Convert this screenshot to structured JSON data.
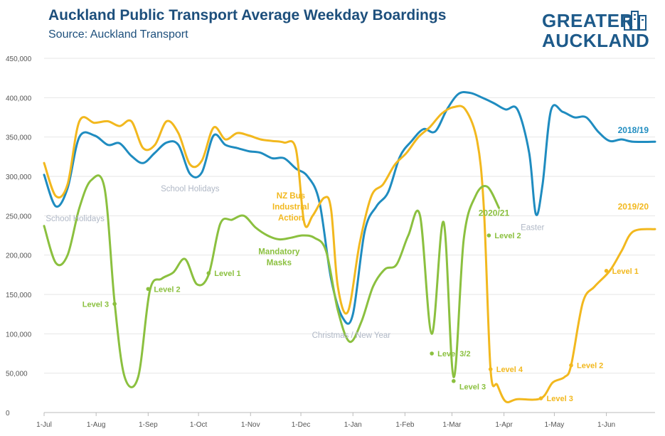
{
  "header": {
    "title": "Auckland Public Transport Average Weekday Boardings",
    "subtitle": "Source: Auckland Transport"
  },
  "logo": {
    "line1": "GREATER",
    "line2": "AUCKLAND",
    "icon": "city-buildings-icon",
    "color": "#1d5a8a"
  },
  "chart_data": {
    "type": "line",
    "title": "Auckland Public Transport Average Weekday Boardings",
    "subtitle": "Source: Auckland Transport",
    "xlabel": "",
    "ylabel": "",
    "x_range": [
      "2000-07-01",
      "2001-06-30"
    ],
    "x_ticks": [
      "1-Jul",
      "1-Aug",
      "1-Sep",
      "1-Oct",
      "1-Nov",
      "1-Dec",
      "1-Jan",
      "1-Feb",
      "1-Mar",
      "1-Apr",
      "1-May",
      "1-Jun"
    ],
    "ylim": [
      0,
      450000
    ],
    "y_ticks": [
      0,
      50000,
      100000,
      150000,
      200000,
      250000,
      300000,
      350000,
      400000,
      450000
    ],
    "y_tick_labels": [
      "0",
      "50,000",
      "100,000",
      "150,000",
      "200,000",
      "250,000",
      "300,000",
      "350,000",
      "400,000",
      "450,000"
    ],
    "grid": "horizontal",
    "series": [
      {
        "name": "2018/19",
        "color": "#1f8cc0",
        "points": [
          [
            "2000-07-01",
            302000
          ],
          [
            "2000-07-08",
            262000
          ],
          [
            "2000-07-15",
            285000
          ],
          [
            "2000-07-22",
            350000
          ],
          [
            "2000-07-31",
            352000
          ],
          [
            "2000-08-08",
            340000
          ],
          [
            "2000-08-15",
            342000
          ],
          [
            "2000-08-22",
            326000
          ],
          [
            "2000-08-29",
            317000
          ],
          [
            "2000-09-05",
            330000
          ],
          [
            "2000-09-12",
            343000
          ],
          [
            "2000-09-19",
            340000
          ],
          [
            "2000-09-26",
            303000
          ],
          [
            "2000-10-03",
            305000
          ],
          [
            "2000-10-10",
            352000
          ],
          [
            "2000-10-17",
            340000
          ],
          [
            "2000-10-24",
            336000
          ],
          [
            "2000-10-31",
            332000
          ],
          [
            "2000-11-07",
            330000
          ],
          [
            "2000-11-14",
            323000
          ],
          [
            "2000-11-21",
            323000
          ],
          [
            "2000-11-28",
            310000
          ],
          [
            "2000-12-05",
            300000
          ],
          [
            "2000-12-12",
            268000
          ],
          [
            "2000-12-19",
            170000
          ],
          [
            "2000-12-26",
            120000
          ],
          [
            "2001-01-01",
            125000
          ],
          [
            "2001-01-08",
            230000
          ],
          [
            "2001-01-15",
            262000
          ],
          [
            "2001-01-22",
            280000
          ],
          [
            "2001-01-29",
            325000
          ],
          [
            "2001-02-05",
            345000
          ],
          [
            "2001-02-12",
            360000
          ],
          [
            "2001-02-19",
            357000
          ],
          [
            "2001-02-26",
            385000
          ],
          [
            "2001-03-05",
            405000
          ],
          [
            "2001-03-12",
            406000
          ],
          [
            "2001-03-19",
            400000
          ],
          [
            "2001-03-26",
            393000
          ],
          [
            "2001-04-02",
            385000
          ],
          [
            "2001-04-09",
            385000
          ],
          [
            "2001-04-16",
            330000
          ],
          [
            "2001-04-20",
            252000
          ],
          [
            "2001-04-24",
            290000
          ],
          [
            "2001-04-29",
            384000
          ],
          [
            "2001-05-06",
            382000
          ],
          [
            "2001-05-13",
            375000
          ],
          [
            "2001-05-20",
            375000
          ],
          [
            "2001-05-27",
            357000
          ],
          [
            "2001-06-03",
            345000
          ],
          [
            "2001-06-10",
            347000
          ],
          [
            "2001-06-17",
            344000
          ],
          [
            "2001-06-30",
            344000
          ]
        ]
      },
      {
        "name": "2019/20",
        "color": "#f2b81e",
        "points": [
          [
            "2000-07-01",
            317000
          ],
          [
            "2000-07-08",
            275000
          ],
          [
            "2000-07-15",
            290000
          ],
          [
            "2000-07-22",
            370000
          ],
          [
            "2000-07-31",
            368000
          ],
          [
            "2000-08-08",
            370000
          ],
          [
            "2000-08-15",
            364000
          ],
          [
            "2000-08-22",
            370000
          ],
          [
            "2000-08-29",
            336000
          ],
          [
            "2000-09-05",
            340000
          ],
          [
            "2000-09-12",
            370000
          ],
          [
            "2000-09-19",
            355000
          ],
          [
            "2000-09-26",
            315000
          ],
          [
            "2000-10-03",
            320000
          ],
          [
            "2000-10-10",
            362000
          ],
          [
            "2000-10-17",
            347000
          ],
          [
            "2000-10-24",
            355000
          ],
          [
            "2000-10-31",
            352000
          ],
          [
            "2000-11-07",
            347000
          ],
          [
            "2000-11-14",
            345000
          ],
          [
            "2000-11-21",
            343000
          ],
          [
            "2000-11-28",
            335000
          ],
          [
            "2000-12-03",
            241000
          ],
          [
            "2000-12-08",
            250000
          ],
          [
            "2000-12-15",
            273000
          ],
          [
            "2000-12-19",
            258000
          ],
          [
            "2000-12-23",
            160000
          ],
          [
            "2000-12-29",
            128000
          ],
          [
            "2001-01-05",
            215000
          ],
          [
            "2001-01-12",
            275000
          ],
          [
            "2001-01-19",
            290000
          ],
          [
            "2001-01-26",
            315000
          ],
          [
            "2001-02-02",
            330000
          ],
          [
            "2001-02-09",
            350000
          ],
          [
            "2001-02-16",
            363000
          ],
          [
            "2001-02-23",
            380000
          ],
          [
            "2001-03-02",
            388000
          ],
          [
            "2001-03-09",
            385000
          ],
          [
            "2001-03-16",
            345000
          ],
          [
            "2001-03-20",
            260000
          ],
          [
            "2001-03-24",
            55000
          ],
          [
            "2001-03-28",
            35000
          ],
          [
            "2001-04-02",
            14000
          ],
          [
            "2001-04-09",
            17000
          ],
          [
            "2001-04-23",
            18000
          ],
          [
            "2001-04-30",
            38000
          ],
          [
            "2001-05-07",
            45000
          ],
          [
            "2001-05-11",
            60000
          ],
          [
            "2001-05-18",
            140000
          ],
          [
            "2001-05-25",
            160000
          ],
          [
            "2001-06-03",
            180000
          ],
          [
            "2001-06-10",
            205000
          ],
          [
            "2001-06-17",
            230000
          ],
          [
            "2001-06-30",
            233000
          ]
        ]
      },
      {
        "name": "2020/21",
        "color": "#8bc03f",
        "points": [
          [
            "2000-07-01",
            237000
          ],
          [
            "2000-07-08",
            190000
          ],
          [
            "2000-07-15",
            200000
          ],
          [
            "2000-07-22",
            260000
          ],
          [
            "2000-07-29",
            295000
          ],
          [
            "2000-08-06",
            285000
          ],
          [
            "2000-08-12",
            140000
          ],
          [
            "2000-08-18",
            45000
          ],
          [
            "2000-08-26",
            45000
          ],
          [
            "2000-09-02",
            155000
          ],
          [
            "2000-09-09",
            170000
          ],
          [
            "2000-09-16",
            178000
          ],
          [
            "2000-09-23",
            195000
          ],
          [
            "2000-09-30",
            163000
          ],
          [
            "2000-10-07",
            175000
          ],
          [
            "2000-10-14",
            240000
          ],
          [
            "2000-10-21",
            245000
          ],
          [
            "2000-10-28",
            250000
          ],
          [
            "2000-11-04",
            235000
          ],
          [
            "2000-11-11",
            225000
          ],
          [
            "2000-11-18",
            220000
          ],
          [
            "2000-11-25",
            222000
          ],
          [
            "2000-12-02",
            225000
          ],
          [
            "2000-12-09",
            222000
          ],
          [
            "2000-12-16",
            205000
          ],
          [
            "2000-12-23",
            130000
          ],
          [
            "2000-12-30",
            90000
          ],
          [
            "2001-01-06",
            115000
          ],
          [
            "2001-01-13",
            160000
          ],
          [
            "2001-01-20",
            182000
          ],
          [
            "2001-01-27",
            188000
          ],
          [
            "2001-02-03",
            225000
          ],
          [
            "2001-02-10",
            250000
          ],
          [
            "2001-02-17",
            100000
          ],
          [
            "2001-02-24",
            242000
          ],
          [
            "2001-03-02",
            45000
          ],
          [
            "2001-03-08",
            220000
          ],
          [
            "2001-03-15",
            275000
          ],
          [
            "2001-03-22",
            287000
          ],
          [
            "2001-03-29",
            260000
          ]
        ]
      }
    ],
    "series_labels": [
      {
        "text": "2018/19",
        "series": "2018/19",
        "x": "2001-06-17",
        "y": 355000
      },
      {
        "text": "2019/20",
        "series": "2019/20",
        "x": "2001-06-17",
        "y": 258000
      },
      {
        "text": "2020/21",
        "series": "2020/21",
        "x": "2001-03-26",
        "y": 250000
      }
    ],
    "annotations": [
      {
        "text": "School Holidays",
        "color": "#b0b8c6",
        "x": "2000-07-02",
        "y": 243000
      },
      {
        "text": "School Holidays",
        "color": "#b0b8c6",
        "x": "2000-09-26",
        "y": 281000
      },
      {
        "text": "Christmas / New Year",
        "color": "#b0b8c6",
        "x": "2000-12-31",
        "y": 95000
      },
      {
        "text": "Easter",
        "color": "#b0b8c6",
        "x": "2001-04-18",
        "y": 232000
      },
      {
        "text": "NZ Bus",
        "color": "#f2b81e",
        "x": "2000-11-25",
        "y": 272000
      },
      {
        "text": "Industrial",
        "color": "#f2b81e",
        "x": "2000-11-25",
        "y": 258000
      },
      {
        "text": "Action",
        "color": "#f2b81e",
        "x": "2000-11-25",
        "y": 244000
      },
      {
        "text": "Mandatory",
        "color": "#8bc03f",
        "x": "2000-11-18",
        "y": 201000
      },
      {
        "text": "Masks",
        "color": "#8bc03f",
        "x": "2000-11-18",
        "y": 187000
      }
    ],
    "level_markers": [
      {
        "text": "Level 3",
        "series": "2020/21",
        "x": "2000-08-12",
        "y": 138000
      },
      {
        "text": "Level 2",
        "series": "2020/21",
        "x": "2000-09-01",
        "y": 157000
      },
      {
        "text": "Level 1",
        "series": "2020/21",
        "x": "2000-10-07",
        "y": 177000
      },
      {
        "text": "Level 3/2",
        "series": "2020/21",
        "x": "2001-02-17",
        "y": 75000
      },
      {
        "text": "Level 3",
        "series": "2020/21",
        "x": "2001-03-02",
        "y": 40000
      },
      {
        "text": "Level 2",
        "series": "2020/21",
        "x": "2001-03-23",
        "y": 225000
      },
      {
        "text": "Level 4",
        "series": "2019/20",
        "x": "2001-03-24",
        "y": 55000
      },
      {
        "text": "Level 3",
        "series": "2019/20",
        "x": "2001-04-23",
        "y": 18000
      },
      {
        "text": "Level 2",
        "series": "2019/20",
        "x": "2001-05-11",
        "y": 60000
      },
      {
        "text": "Level 1",
        "series": "2019/20",
        "x": "2001-06-01",
        "y": 180000
      }
    ]
  }
}
